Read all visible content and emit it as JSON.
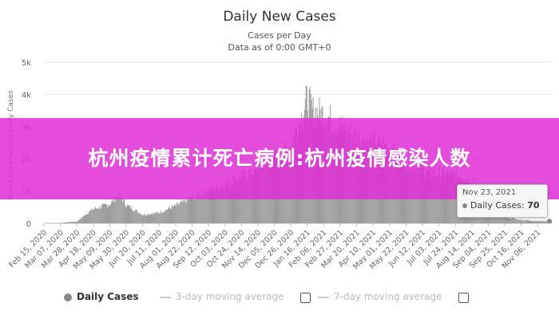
{
  "chart_data": {
    "type": "bar",
    "title": "Daily New Cases",
    "subtitle_line1": "Cases per Day",
    "subtitle_line2": "Data as of 0:00 GMT+0",
    "ylabel": "Novel Coronavirus Daily Cases",
    "ylim": [
      0,
      5000
    ],
    "yticks": [
      0,
      1000,
      2000,
      3000,
      4000,
      5000
    ],
    "ytick_labels": [
      "0",
      "1k",
      "2k",
      "3k",
      "4k",
      "5k"
    ],
    "x_start": "Feb 15, 2020",
    "x_end": "Nov 23, 2021",
    "xtick_labels": [
      "Feb 15, 2020",
      "Mar 07, 2020",
      "Mar 28, 2020",
      "Apr 18, 2020",
      "May 09, 2020",
      "May 30, 2020",
      "Jun 20, 2020",
      "Jul 11, 2020",
      "Aug 01, 2020",
      "Aug 22, 2020",
      "Sep 12, 2020",
      "Oct 03, 2020",
      "Oct 24, 2020",
      "Nov 14, 2020",
      "Dec 05, 2020",
      "Dec 26, 2020",
      "Jan 16, 2021",
      "Feb 06, 2021",
      "Feb 27, 2021",
      "Mar 20, 2021",
      "Apr 10, 2021",
      "May 01, 2021",
      "May 22, 2021",
      "Jun 12, 2021",
      "Jul 03, 2021",
      "Jul 24, 2021",
      "Aug 14, 2021",
      "Sep 04, 2021",
      "Sep 25, 2021",
      "Oct 16, 2021",
      "Nov 06, 2021"
    ],
    "series": [
      {
        "name": "Daily Cases",
        "color": "#9a9a9a",
        "points": [
          {
            "date": "Feb 15, 2020",
            "value": 0
          },
          {
            "date": "Mar 07, 2020",
            "value": 10
          },
          {
            "date": "Mar 28, 2020",
            "value": 60
          },
          {
            "date": "Apr 10, 2020",
            "value": 320
          },
          {
            "date": "Apr 18, 2020",
            "value": 450
          },
          {
            "date": "May 09, 2020",
            "value": 600
          },
          {
            "date": "May 20, 2020",
            "value": 920
          },
          {
            "date": "May 30, 2020",
            "value": 560
          },
          {
            "date": "Jun 20, 2020",
            "value": 270
          },
          {
            "date": "Jul 11, 2020",
            "value": 330
          },
          {
            "date": "Aug 01, 2020",
            "value": 550
          },
          {
            "date": "Aug 22, 2020",
            "value": 800
          },
          {
            "date": "Sep 12, 2020",
            "value": 1050
          },
          {
            "date": "Oct 03, 2020",
            "value": 1250
          },
          {
            "date": "Oct 24, 2020",
            "value": 1450
          },
          {
            "date": "Nov 14, 2020",
            "value": 1700
          },
          {
            "date": "Dec 05, 2020",
            "value": 2000
          },
          {
            "date": "Dec 26, 2020",
            "value": 2450
          },
          {
            "date": "Jan 08, 2021",
            "value": 3300
          },
          {
            "date": "Jan 16, 2021",
            "value": 3900
          },
          {
            "date": "Jan 22, 2021",
            "value": 3500
          },
          {
            "date": "Feb 06, 2021",
            "value": 3400
          },
          {
            "date": "Feb 27, 2021",
            "value": 3000
          },
          {
            "date": "Mar 20, 2021",
            "value": 2700
          },
          {
            "date": "Apr 10, 2021",
            "value": 2600
          },
          {
            "date": "May 01, 2021",
            "value": 2350
          },
          {
            "date": "May 22, 2021",
            "value": 1950
          },
          {
            "date": "Jun 12, 2021",
            "value": 1650
          },
          {
            "date": "Jul 03, 2021",
            "value": 1550
          },
          {
            "date": "Jul 24, 2021",
            "value": 1500
          },
          {
            "date": "Aug 14, 2021",
            "value": 1400
          },
          {
            "date": "Aug 20, 2021",
            "value": 800
          },
          {
            "date": "Sep 04, 2021",
            "value": 350
          },
          {
            "date": "Sep 25, 2021",
            "value": 200
          },
          {
            "date": "Oct 16, 2021",
            "value": 100
          },
          {
            "date": "Nov 06, 2021",
            "value": 75
          },
          {
            "date": "Nov 23, 2021",
            "value": 70
          }
        ]
      }
    ],
    "tooltip": {
      "date": "Nov 23, 2021",
      "label": "Daily Cases",
      "value": "70"
    },
    "legend": {
      "position": "bottom",
      "items": [
        {
          "label": "Daily Cases",
          "color": "#888888",
          "kind": "dot"
        },
        {
          "label": "3-day moving average",
          "color": "#cccccc",
          "kind": "line"
        },
        {
          "label": "7-day moving average",
          "color": "#cccccc",
          "kind": "line"
        }
      ]
    },
    "grid": "horizontal"
  },
  "overlay": {
    "banner_text": "杭州疫情累计死亡病例:杭州疫情感染人数",
    "banner_color": "#e02fd6"
  }
}
